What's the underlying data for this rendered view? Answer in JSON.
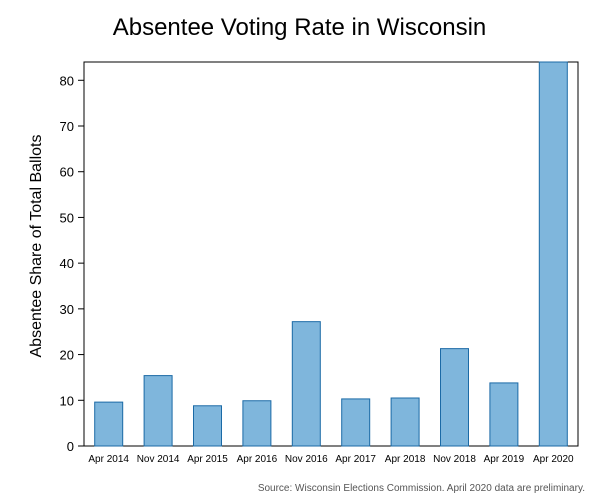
{
  "chart_data": {
    "type": "bar",
    "title": "Absentee Voting Rate in Wisconsin",
    "xlabel": "",
    "ylabel": "Absentee Share of Total Ballots",
    "categories": [
      "Apr 2014",
      "Nov 2014",
      "Apr 2015",
      "Apr 2016",
      "Nov 2016",
      "Apr 2017",
      "Apr 2018",
      "Nov 2018",
      "Apr 2019",
      "Apr 2020"
    ],
    "values": [
      9.6,
      15.4,
      8.8,
      9.9,
      27.2,
      10.3,
      10.5,
      21.3,
      13.8,
      84.0
    ],
    "ylim": [
      0,
      84
    ],
    "yticks": [
      0,
      10,
      20,
      30,
      40,
      50,
      60,
      70,
      80
    ],
    "grid": false,
    "bar_fill": "#7fb6dc",
    "bar_stroke": "#1b6aa6",
    "source": "Source: Wisconsin Elections Commission. April 2020 data are preliminary."
  }
}
